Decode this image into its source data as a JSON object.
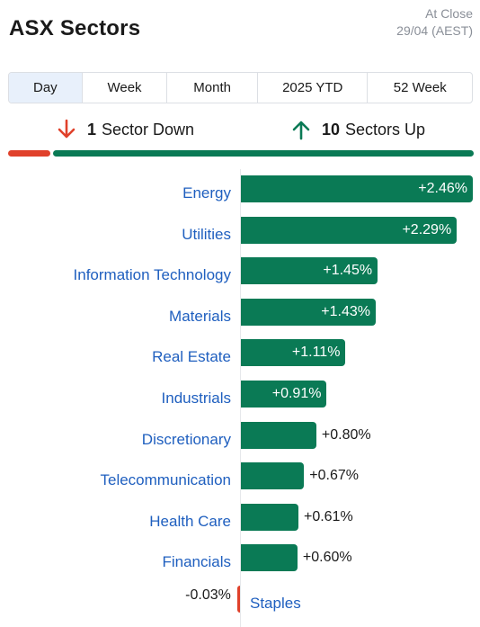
{
  "header": {
    "title": "ASX Sectors",
    "status_line1": "At Close",
    "status_line2": "29/04 (AEST)"
  },
  "tabs": [
    {
      "label": "Day",
      "active": true
    },
    {
      "label": "Week",
      "active": false
    },
    {
      "label": "Month",
      "active": false
    },
    {
      "label": "2025 YTD",
      "active": false
    },
    {
      "label": "52 Week",
      "active": false
    }
  ],
  "summary": {
    "down_count": "1",
    "down_label": "Sector Down",
    "up_count": "10",
    "up_label": "Sectors Up",
    "down_icon": "arrow-down-icon",
    "up_icon": "arrow-up-icon"
  },
  "colors": {
    "up": "#0a7a55",
    "down": "#e0412b",
    "label": "#1f5fbf"
  },
  "chart_data": {
    "type": "bar",
    "orientation": "horizontal",
    "categories": [
      "Energy",
      "Utilities",
      "Information Technology",
      "Materials",
      "Real Estate",
      "Industrials",
      "Discretionary",
      "Telecommunication",
      "Health Care",
      "Financials",
      "Staples"
    ],
    "values": [
      2.46,
      2.29,
      1.45,
      1.43,
      1.11,
      0.91,
      0.8,
      0.67,
      0.61,
      0.6,
      -0.03
    ],
    "value_labels": [
      "+2.46%",
      "+2.29%",
      "+1.45%",
      "+1.43%",
      "+1.11%",
      "+0.91%",
      "+0.80%",
      "+0.67%",
      "+0.61%",
      "+0.60%",
      "-0.03%"
    ],
    "breadth": {
      "down": 1,
      "up": 10
    },
    "grid": false,
    "legend": "none"
  }
}
